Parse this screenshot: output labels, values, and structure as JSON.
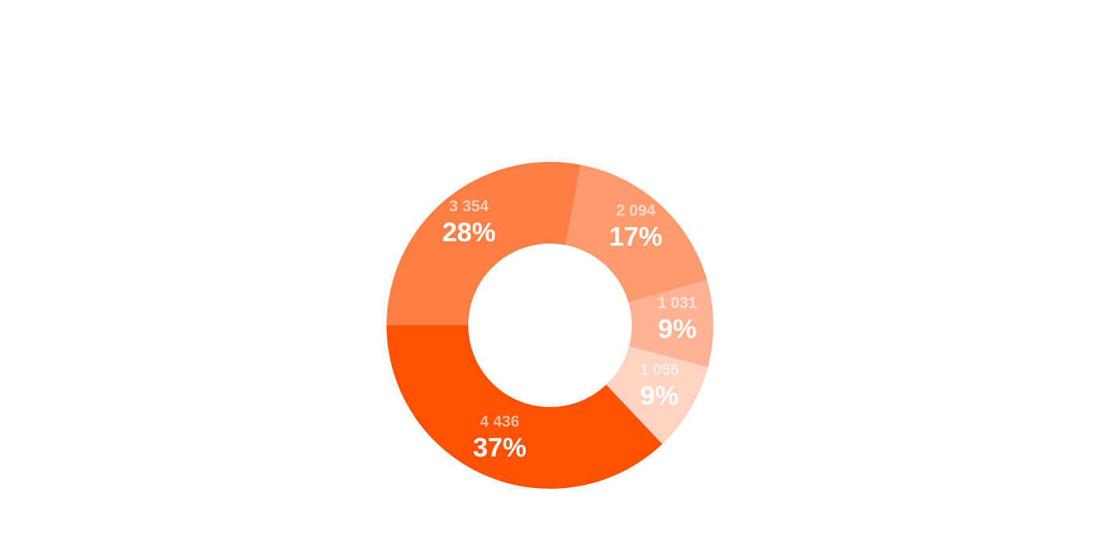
{
  "chart_data": {
    "type": "pie",
    "title": "",
    "donut": true,
    "slices": [
      {
        "value": 3354,
        "value_label": "3 354",
        "percent_label": "28%",
        "color": "#FF7E45"
      },
      {
        "value": 2094,
        "value_label": "2 094",
        "percent_label": "17%",
        "color": "#FF9A6D"
      },
      {
        "value": 1031,
        "value_label": "1 031",
        "percent_label": "9%",
        "color": "#FFB394"
      },
      {
        "value": 1056,
        "value_label": "1 056",
        "percent_label": "9%",
        "color": "#FFD3C2"
      },
      {
        "value": 4436,
        "value_label": "4 436",
        "percent_label": "37%",
        "color": "#FF5200"
      }
    ]
  }
}
